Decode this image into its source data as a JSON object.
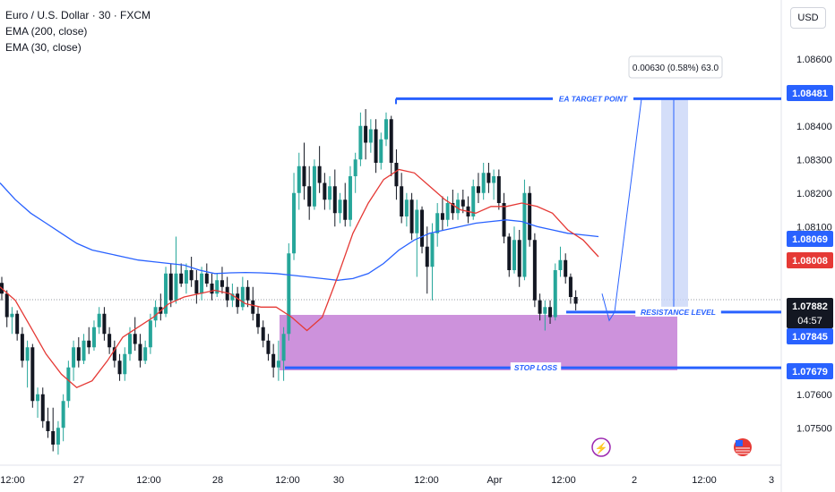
{
  "legend": {
    "symbol": "Euro / U.S. Dollar · 30 · FXCM",
    "ema200": "EMA (200, close)",
    "ema30": "EMA (30, close)"
  },
  "currency_button": "USD",
  "colors": {
    "up": "#26a69a",
    "down": "#131722",
    "ema200": "#2962ff",
    "ema30": "#e53935",
    "level_line": "#2962ff",
    "zone": "#c47fd6",
    "target_box": "#c9d6f7"
  },
  "chart_data": {
    "type": "candlestick",
    "title": "Euro / U.S. Dollar · 30 · FXCM",
    "y_axis_labels": [
      "1.08600",
      "1.08400",
      "1.08300",
      "1.08200",
      "1.08100",
      "1.07600",
      "1.07500"
    ],
    "x_axis_labels": [
      "12:00",
      "27",
      "12:00",
      "28",
      "12:00",
      "30",
      "12:00",
      "Apr",
      "12:00",
      "2",
      "12:00",
      "3"
    ],
    "ylim": [
      1.0745,
      1.0865
    ],
    "price_labels": [
      {
        "value": "1.08481",
        "kind": "target",
        "bg": "#2962ff"
      },
      {
        "value": "1.08069",
        "kind": "ema200",
        "bg": "#2962ff"
      },
      {
        "value": "1.08008",
        "kind": "ema30",
        "bg": "#e53935"
      },
      {
        "value": "1.07882",
        "kind": "last",
        "bg": "#131722",
        "sub": "04:57"
      },
      {
        "value": "1.07845",
        "kind": "resistance",
        "bg": "#2962ff"
      },
      {
        "value": "1.07679",
        "kind": "stop",
        "bg": "#2962ff"
      }
    ],
    "annotations": {
      "target_label": "EA TARGET POINT",
      "resistance_label": "RESISTANCE LEVEL",
      "stop_label": "STOP LOSS",
      "measure_label": "0.00630 (0.58%) 63.0",
      "target_price": 1.08481,
      "resistance_price": 1.07845,
      "stop_price": 1.07679,
      "last_price": 1.07882
    },
    "candles": [
      [
        1.07932,
        1.0795,
        1.0788,
        1.079
      ],
      [
        1.079,
        1.0791,
        1.078,
        1.0783
      ],
      [
        1.0783,
        1.0786,
        1.0778,
        1.0784
      ],
      [
        1.0784,
        1.0785,
        1.0776,
        1.0778
      ],
      [
        1.0778,
        1.078,
        1.0768,
        1.077
      ],
      [
        1.077,
        1.0776,
        1.0762,
        1.0774
      ],
      [
        1.0774,
        1.0775,
        1.0756,
        1.0758
      ],
      [
        1.0758,
        1.0762,
        1.0753,
        1.076
      ],
      [
        1.076,
        1.0762,
        1.075,
        1.0752
      ],
      [
        1.0752,
        1.0756,
        1.0747,
        1.0749
      ],
      [
        1.0749,
        1.0756,
        1.0743,
        1.0745
      ],
      [
        1.0745,
        1.0752,
        1.0742,
        1.075
      ],
      [
        1.075,
        1.076,
        1.0746,
        1.0758
      ],
      [
        1.0758,
        1.077,
        1.0756,
        1.0768
      ],
      [
        1.0768,
        1.0776,
        1.0764,
        1.0774
      ],
      [
        1.0774,
        1.0777,
        1.0768,
        1.077
      ],
      [
        1.077,
        1.0778,
        1.0769,
        1.0776
      ],
      [
        1.0776,
        1.078,
        1.0772,
        1.0774
      ],
      [
        1.0774,
        1.0782,
        1.0773,
        1.078
      ],
      [
        1.078,
        1.0786,
        1.0778,
        1.0784
      ],
      [
        1.0784,
        1.0786,
        1.0776,
        1.0778
      ],
      [
        1.0778,
        1.078,
        1.0772,
        1.0774
      ],
      [
        1.0774,
        1.0776,
        1.0768,
        1.077
      ],
      [
        1.077,
        1.0772,
        1.0764,
        1.0766
      ],
      [
        1.0766,
        1.0774,
        1.0764,
        1.0772
      ],
      [
        1.0772,
        1.078,
        1.077,
        1.0778
      ],
      [
        1.0778,
        1.0783,
        1.0773,
        1.0775
      ],
      [
        1.0775,
        1.0778,
        1.0768,
        1.077
      ],
      [
        1.077,
        1.0776,
        1.0769,
        1.0774
      ],
      [
        1.0774,
        1.0784,
        1.0772,
        1.0782
      ],
      [
        1.0782,
        1.0788,
        1.078,
        1.0786
      ],
      [
        1.0786,
        1.079,
        1.0782,
        1.0784
      ],
      [
        1.0784,
        1.0798,
        1.0783,
        1.0796
      ],
      [
        1.0796,
        1.0799,
        1.0786,
        1.0788
      ],
      [
        1.0788,
        1.0807,
        1.0787,
        1.0796
      ],
      [
        1.0796,
        1.0799,
        1.0792,
        1.0793
      ],
      [
        1.0793,
        1.0799,
        1.079,
        1.0797
      ],
      [
        1.0797,
        1.0801,
        1.0792,
        1.0794
      ],
      [
        1.0794,
        1.0797,
        1.0787,
        1.079
      ],
      [
        1.079,
        1.0798,
        1.0788,
        1.0796
      ],
      [
        1.0796,
        1.0799,
        1.0792,
        1.0793
      ],
      [
        1.0793,
        1.0796,
        1.0788,
        1.079
      ],
      [
        1.079,
        1.0796,
        1.0789,
        1.0794
      ],
      [
        1.0794,
        1.0798,
        1.079,
        1.0792
      ],
      [
        1.0792,
        1.0795,
        1.0786,
        1.0788
      ],
      [
        1.0788,
        1.0793,
        1.0786,
        1.079
      ],
      [
        1.079,
        1.0792,
        1.0784,
        1.0786
      ],
      [
        1.0786,
        1.0795,
        1.0785,
        1.0792
      ],
      [
        1.0792,
        1.0794,
        1.0786,
        1.0788
      ],
      [
        1.0788,
        1.0792,
        1.0782,
        1.0784
      ],
      [
        1.0784,
        1.0786,
        1.0778,
        1.078
      ],
      [
        1.078,
        1.0782,
        1.0774,
        1.0776
      ],
      [
        1.0776,
        1.0778,
        1.077,
        1.0772
      ],
      [
        1.0772,
        1.0775,
        1.0765,
        1.0768
      ],
      [
        1.0768,
        1.0776,
        1.0764,
        1.077
      ],
      [
        1.077,
        1.078,
        1.0764,
        1.0778
      ],
      [
        1.0778,
        1.0805,
        1.0776,
        1.0802
      ],
      [
        1.0802,
        1.0826,
        1.08,
        1.082
      ],
      [
        1.082,
        1.0832,
        1.0815,
        1.0828
      ],
      [
        1.0828,
        1.0835,
        1.0818,
        1.0822
      ],
      [
        1.0822,
        1.0828,
        1.0812,
        1.0816
      ],
      [
        1.0816,
        1.083,
        1.0815,
        1.0828
      ],
      [
        1.0828,
        1.0834,
        1.082,
        1.0823
      ],
      [
        1.0823,
        1.0826,
        1.0815,
        1.0818
      ],
      [
        1.0818,
        1.0825,
        1.0815,
        1.0822
      ],
      [
        1.0822,
        1.0827,
        1.081,
        1.0814
      ],
      [
        1.0814,
        1.082,
        1.0811,
        1.0818
      ],
      [
        1.0818,
        1.0823,
        1.081,
        1.0812
      ],
      [
        1.0812,
        1.0828,
        1.081,
        1.0825
      ],
      [
        1.0825,
        1.0832,
        1.082,
        1.083
      ],
      [
        1.083,
        1.0844,
        1.0828,
        1.084
      ],
      [
        1.084,
        1.0845,
        1.083,
        1.0835
      ],
      [
        1.0835,
        1.0842,
        1.0832,
        1.0839
      ],
      [
        1.0839,
        1.0842,
        1.0826,
        1.0829
      ],
      [
        1.0829,
        1.0838,
        1.0827,
        1.0836
      ],
      [
        1.0836,
        1.0844,
        1.0834,
        1.0842
      ],
      [
        1.0842,
        1.0843,
        1.0825,
        1.0829
      ],
      [
        1.0829,
        1.0833,
        1.0818,
        1.0822
      ],
      [
        1.0822,
        1.0826,
        1.0811,
        1.0813
      ],
      [
        1.0813,
        1.082,
        1.081,
        1.0818
      ],
      [
        1.0818,
        1.082,
        1.0806,
        1.0808
      ],
      [
        1.0808,
        1.0818,
        1.0795,
        1.0815
      ],
      [
        1.0815,
        1.0816,
        1.0802,
        1.0804
      ],
      [
        1.0804,
        1.081,
        1.079,
        1.0798
      ],
      [
        1.0798,
        1.0811,
        1.0788,
        1.0808
      ],
      [
        1.0808,
        1.0817,
        1.0804,
        1.0814
      ],
      [
        1.0814,
        1.0819,
        1.0809,
        1.0812
      ],
      [
        1.0812,
        1.0819,
        1.081,
        1.0817
      ],
      [
        1.0817,
        1.0821,
        1.0812,
        1.0814
      ],
      [
        1.0814,
        1.082,
        1.0812,
        1.0818
      ],
      [
        1.0818,
        1.0821,
        1.0814,
        1.0816
      ],
      [
        1.0816,
        1.0819,
        1.0811,
        1.0813
      ],
      [
        1.0813,
        1.0824,
        1.0812,
        1.0822
      ],
      [
        1.0822,
        1.0826,
        1.0817,
        1.082
      ],
      [
        1.082,
        1.0829,
        1.0818,
        1.0826
      ],
      [
        1.0826,
        1.0829,
        1.082,
        1.0823
      ],
      [
        1.0823,
        1.0827,
        1.0818,
        1.0825
      ],
      [
        1.0825,
        1.0827,
        1.0815,
        1.0817
      ],
      [
        1.0817,
        1.082,
        1.0805,
        1.0807
      ],
      [
        1.0807,
        1.0808,
        1.0795,
        1.0797
      ],
      [
        1.0797,
        1.081,
        1.0796,
        1.0806
      ],
      [
        1.0806,
        1.0809,
        1.0792,
        1.0795
      ],
      [
        1.0795,
        1.0824,
        1.0794,
        1.082
      ],
      [
        1.082,
        1.0822,
        1.0804,
        1.0806
      ],
      [
        1.0806,
        1.0808,
        1.0786,
        1.0788
      ],
      [
        1.0788,
        1.079,
        1.0782,
        1.0784
      ],
      [
        1.0784,
        1.0788,
        1.0779,
        1.0786
      ],
      [
        1.0786,
        1.0788,
        1.0781,
        1.0783
      ],
      [
        1.0783,
        1.0799,
        1.0782,
        1.0797
      ],
      [
        1.0797,
        1.0804,
        1.0795,
        1.08
      ],
      [
        1.08,
        1.0802,
        1.0793,
        1.0795
      ],
      [
        1.0795,
        1.0796,
        1.0787,
        1.0789
      ],
      [
        1.0789,
        1.0791,
        1.0785,
        1.0787
      ]
    ],
    "candle_start_x": 2,
    "candle_step_x": 5.72,
    "ema200": [
      1.0823,
      1.0818,
      1.0814,
      1.0811,
      1.0808,
      1.0805,
      1.0803,
      1.0802,
      1.0801,
      1.08,
      1.07995,
      1.0799,
      1.07985,
      1.0797,
      1.0796,
      1.07962,
      1.07963,
      1.07962,
      1.0796,
      1.07955,
      1.0795,
      1.07945,
      1.0794,
      1.07945,
      1.0796,
      1.0799,
      1.0803,
      1.0806,
      1.0808,
      1.0809,
      1.081,
      1.0811,
      1.08115,
      1.0812,
      1.08115,
      1.081,
      1.0809,
      1.0808,
      1.08075,
      1.0807
    ],
    "ema30": [
      1.0792,
      1.0788,
      1.078,
      1.0772,
      1.0766,
      1.0762,
      1.0764,
      1.077,
      1.0777,
      1.078,
      1.0783,
      1.0787,
      1.0789,
      1.079,
      1.0791,
      1.079,
      1.0787,
      1.0786,
      1.0786,
      1.0783,
      1.0779,
      1.0783,
      1.0795,
      1.0808,
      1.0817,
      1.0824,
      1.0827,
      1.0826,
      1.0822,
      1.0818,
      1.0815,
      1.0814,
      1.0816,
      1.0816,
      1.0817,
      1.0816,
      1.0814,
      1.0809,
      1.0806,
      1.0801
    ]
  }
}
